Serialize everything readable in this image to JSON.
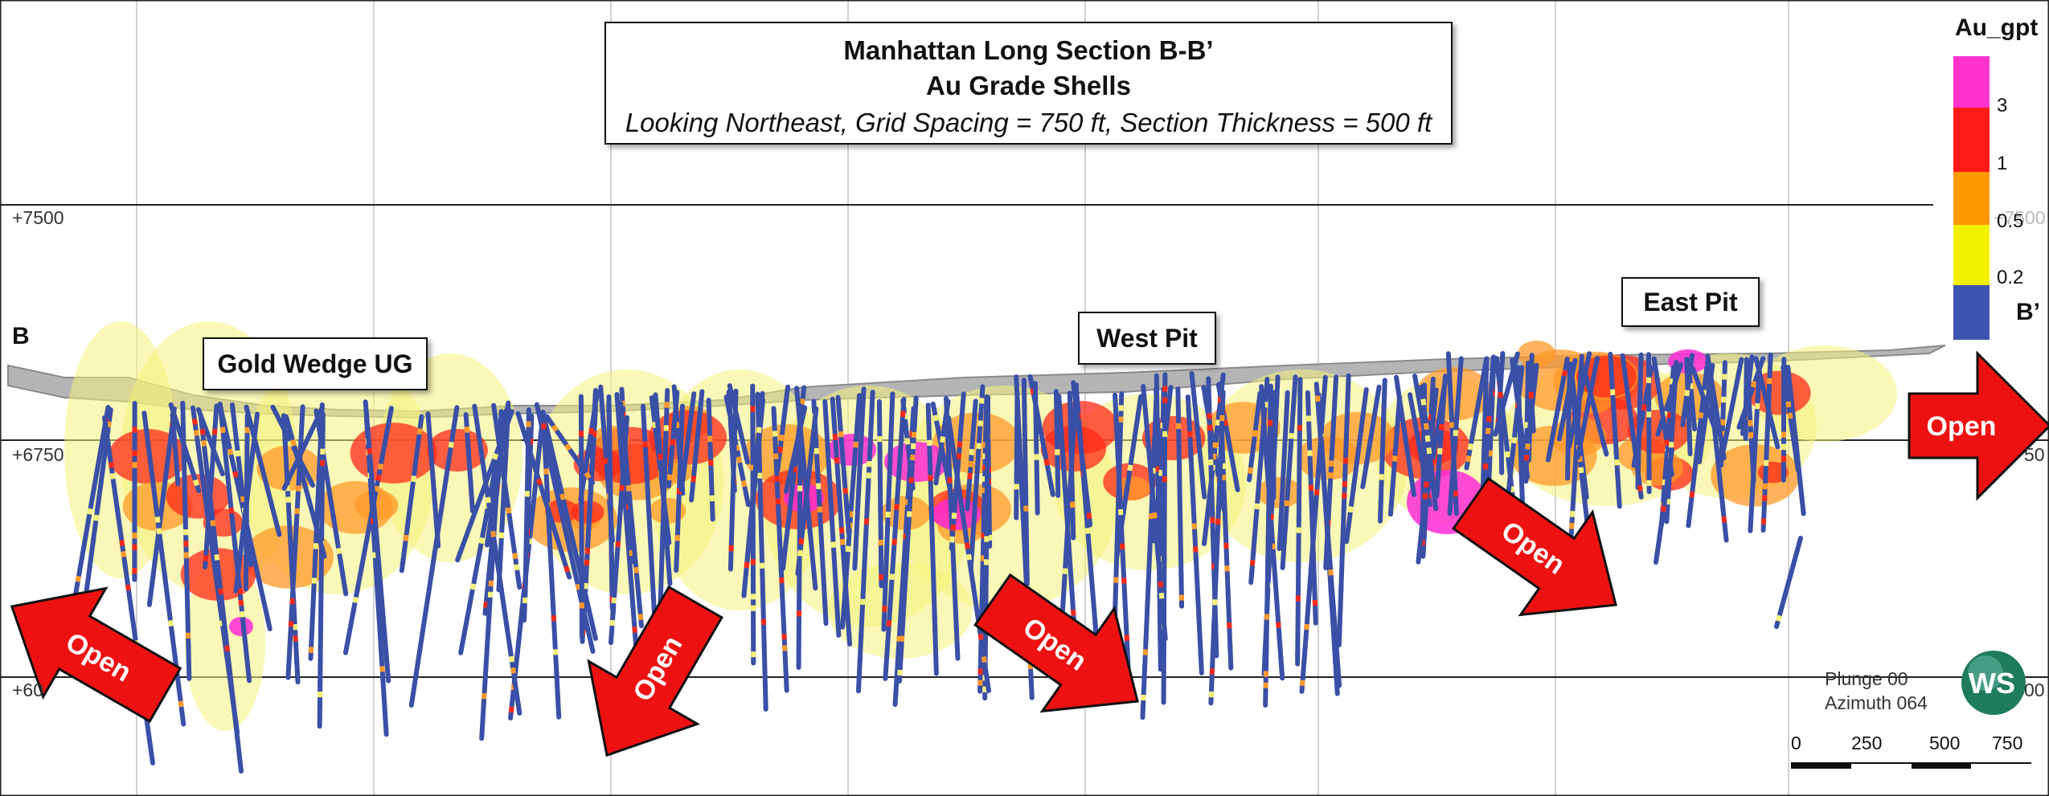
{
  "title": {
    "line1": "Manhattan Long Section B-B’",
    "line2": "Au Grade Shells",
    "line3": "Looking Northeast, Grid Spacing = 750 ft, Section Thickness = 500 ft"
  },
  "labels": {
    "gold_wedge": "Gold Wedge UG",
    "west_pit": "West Pit",
    "east_pit": "East Pit"
  },
  "section_ends": {
    "left": "B",
    "right": "B’"
  },
  "elevations": {
    "e7500_left": "+7500",
    "e7500_right": "+7500",
    "e6750_left": "+6750",
    "e6750_right": "50",
    "e6000_left": "+60",
    "e6000_right": "00"
  },
  "legend": {
    "title": "Au_gpt",
    "ticks": [
      "3",
      "1",
      "0.5",
      "0.2"
    ],
    "colors": [
      "#ff33cc",
      "#ff1a1a",
      "#ff9900",
      "#f2f200",
      "#3e55b0"
    ]
  },
  "open_label": "Open",
  "orientation": {
    "plunge": "Plunge 00",
    "azimuth": "Azimuth 064"
  },
  "logo_text": "WS",
  "scale": {
    "labels": [
      "0",
      "250",
      "500",
      "750"
    ]
  },
  "colors": {
    "hole": "#3a4fa6",
    "shell_yellow": "#f4f27a",
    "shell_orange": "#ff9a2a",
    "shell_red": "#ff2a1a",
    "shell_magenta": "#ff2bd5",
    "arrow": "#ee1111",
    "topography": "#9a9a9a"
  }
}
